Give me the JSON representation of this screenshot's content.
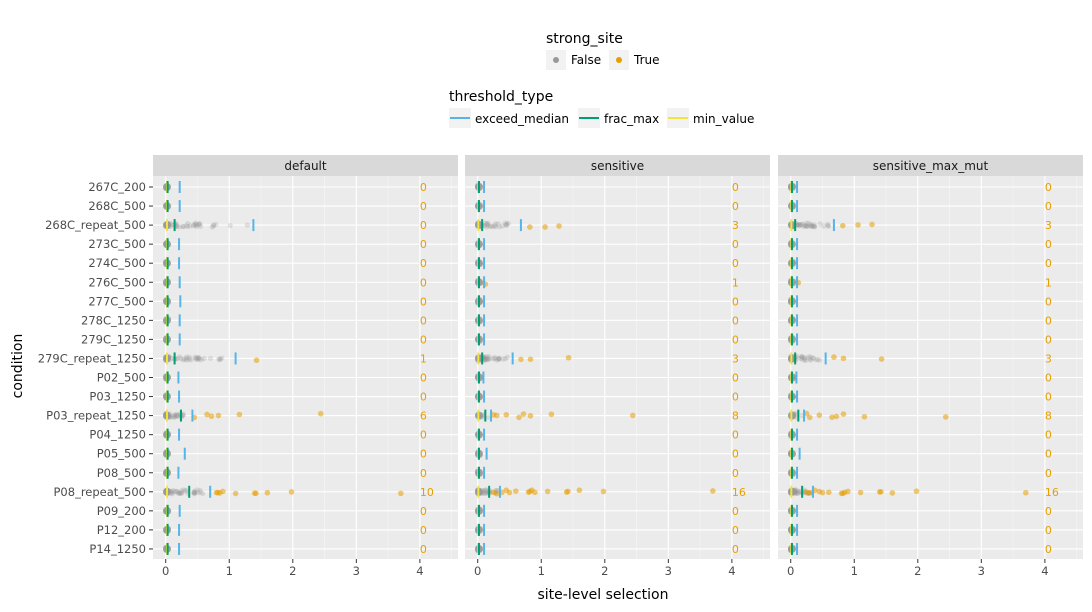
{
  "chart_data": {
    "type": "scatter",
    "xlabel": "site-level selection",
    "ylabel": "condition",
    "xlim": [
      -0.2,
      4.6
    ],
    "xticks": [
      0,
      1,
      2,
      3,
      4
    ],
    "grid": true,
    "legend_placement": "top",
    "colors": {
      "strong_false": "#999999",
      "strong_true": "#E69F00",
      "exceed_median": "#56B4E9",
      "frac_max": "#009E73",
      "min_value": "#F0E442",
      "panel_bg": "#EBEBEB",
      "strip_bg": "#D9D9D9"
    },
    "legends": [
      {
        "title": "strong_site",
        "kind": "point",
        "items": [
          {
            "label": "False",
            "color": "#999999"
          },
          {
            "label": "True",
            "color": "#E69F00"
          }
        ]
      },
      {
        "title": "threshold_type",
        "kind": "line",
        "items": [
          {
            "label": "exceed_median",
            "color": "#56B4E9"
          },
          {
            "label": "frac_max",
            "color": "#009E73"
          },
          {
            "label": "min_value",
            "color": "#F0E442"
          }
        ]
      }
    ],
    "conditions": [
      "267C_200",
      "268C_500",
      "268C_repeat_500",
      "273C_500",
      "274C_500",
      "276C_500",
      "277C_500",
      "278C_1250",
      "279C_1250",
      "279C_repeat_1250",
      "P02_500",
      "P03_1250",
      "P03_repeat_1250",
      "P04_1250",
      "P05_500",
      "P08_500",
      "P08_repeat_500",
      "P09_200",
      "P12_200",
      "P14_1250"
    ],
    "facets": [
      {
        "name": "default",
        "counts": [
          0,
          0,
          0,
          0,
          0,
          0,
          0,
          0,
          0,
          1,
          0,
          0,
          6,
          0,
          0,
          0,
          10,
          0,
          0,
          0
        ],
        "exceed_median": [
          0.22,
          0.22,
          1.38,
          0.21,
          0.21,
          0.22,
          0.23,
          0.22,
          0.22,
          1.1,
          0.2,
          0.21,
          0.42,
          0.21,
          0.3,
          0.2,
          0.7,
          0.22,
          0.21,
          0.21
        ],
        "frac_max": [
          0.03,
          0.03,
          0.14,
          0.03,
          0.03,
          0.03,
          0.03,
          0.03,
          0.03,
          0.14,
          0.03,
          0.03,
          0.24,
          0.03,
          0.03,
          0.03,
          0.37,
          0.03,
          0.03,
          0.03
        ],
        "min_value": [
          0.02,
          0.02,
          0.02,
          0.02,
          0.02,
          0.02,
          0.02,
          0.02,
          0.02,
          0.02,
          0.02,
          0.02,
          0.02,
          0.02,
          0.02,
          0.02,
          0.02,
          0.02,
          0.02,
          0.02
        ],
        "strong_points": [
          {
            "row": 9,
            "x": 1.43
          },
          {
            "row": 12,
            "x": 0.65
          },
          {
            "row": 12,
            "x": 0.72
          },
          {
            "row": 12,
            "x": 0.83
          },
          {
            "row": 12,
            "x": 1.16
          },
          {
            "row": 12,
            "x": 2.44
          },
          {
            "row": 12,
            "x": 0.45
          },
          {
            "row": 16,
            "x": 0.8
          },
          {
            "row": 16,
            "x": 0.85
          },
          {
            "row": 16,
            "x": 0.9
          },
          {
            "row": 16,
            "x": 1.1
          },
          {
            "row": 16,
            "x": 1.4
          },
          {
            "row": 16,
            "x": 1.42
          },
          {
            "row": 16,
            "x": 1.6
          },
          {
            "row": 16,
            "x": 1.98
          },
          {
            "row": 16,
            "x": 3.7
          },
          {
            "row": 16,
            "x": 0.82
          }
        ],
        "weak_spread": [
          0.05,
          0.05,
          1.3,
          0.05,
          0.05,
          0.05,
          0.05,
          0.05,
          0.05,
          0.9,
          0.05,
          0.05,
          0.3,
          0.05,
          0.05,
          0.05,
          0.6,
          0.05,
          0.05,
          0.05
        ]
      },
      {
        "name": "sensitive",
        "counts": [
          0,
          0,
          3,
          0,
          0,
          1,
          0,
          0,
          0,
          3,
          0,
          0,
          8,
          0,
          0,
          0,
          16,
          0,
          0,
          0
        ],
        "exceed_median": [
          0.1,
          0.1,
          0.68,
          0.1,
          0.1,
          0.1,
          0.1,
          0.1,
          0.1,
          0.55,
          0.09,
          0.1,
          0.21,
          0.1,
          0.14,
          0.1,
          0.35,
          0.1,
          0.1,
          0.1
        ],
        "frac_max": [
          0.02,
          0.02,
          0.07,
          0.02,
          0.02,
          0.02,
          0.02,
          0.02,
          0.02,
          0.07,
          0.02,
          0.02,
          0.12,
          0.02,
          0.02,
          0.02,
          0.18,
          0.02,
          0.02,
          0.02
        ],
        "min_value": [
          0.01,
          0.01,
          0.01,
          0.01,
          0.01,
          0.01,
          0.01,
          0.01,
          0.01,
          0.01,
          0.01,
          0.01,
          0.01,
          0.01,
          0.01,
          0.01,
          0.01,
          0.01,
          0.01,
          0.01
        ],
        "strong_points": [
          {
            "row": 2,
            "x": 0.82
          },
          {
            "row": 2,
            "x": 1.06
          },
          {
            "row": 2,
            "x": 1.28
          },
          {
            "row": 5,
            "x": 0.12
          },
          {
            "row": 9,
            "x": 0.68
          },
          {
            "row": 9,
            "x": 0.83
          },
          {
            "row": 9,
            "x": 1.43
          },
          {
            "row": 12,
            "x": 0.45
          },
          {
            "row": 12,
            "x": 0.65
          },
          {
            "row": 12,
            "x": 0.72
          },
          {
            "row": 12,
            "x": 0.83
          },
          {
            "row": 12,
            "x": 1.16
          },
          {
            "row": 12,
            "x": 2.44
          },
          {
            "row": 12,
            "x": 0.3
          },
          {
            "row": 12,
            "x": 0.25
          },
          {
            "row": 16,
            "x": 0.38
          },
          {
            "row": 16,
            "x": 0.45
          },
          {
            "row": 16,
            "x": 0.5
          },
          {
            "row": 16,
            "x": 0.6
          },
          {
            "row": 16,
            "x": 0.8
          },
          {
            "row": 16,
            "x": 0.82
          },
          {
            "row": 16,
            "x": 0.85
          },
          {
            "row": 16,
            "x": 0.9
          },
          {
            "row": 16,
            "x": 1.1
          },
          {
            "row": 16,
            "x": 1.4
          },
          {
            "row": 16,
            "x": 1.42
          },
          {
            "row": 16,
            "x": 1.6
          },
          {
            "row": 16,
            "x": 1.98
          },
          {
            "row": 16,
            "x": 3.7
          },
          {
            "row": 16,
            "x": 0.25
          },
          {
            "row": 16,
            "x": 0.3
          }
        ],
        "weak_spread": [
          0.05,
          0.05,
          0.6,
          0.05,
          0.05,
          0.08,
          0.05,
          0.05,
          0.05,
          0.5,
          0.05,
          0.05,
          0.2,
          0.05,
          0.05,
          0.05,
          0.35,
          0.05,
          0.05,
          0.05
        ]
      },
      {
        "name": "sensitive_max_mut",
        "counts": [
          0,
          0,
          3,
          0,
          0,
          1,
          0,
          0,
          0,
          3,
          0,
          0,
          8,
          0,
          0,
          0,
          16,
          0,
          0,
          0
        ],
        "exceed_median": [
          0.1,
          0.1,
          0.68,
          0.1,
          0.1,
          0.1,
          0.1,
          0.1,
          0.1,
          0.55,
          0.09,
          0.1,
          0.21,
          0.1,
          0.14,
          0.1,
          0.35,
          0.1,
          0.1,
          0.1
        ],
        "frac_max": [
          0.02,
          0.02,
          0.07,
          0.02,
          0.02,
          0.02,
          0.02,
          0.02,
          0.02,
          0.07,
          0.02,
          0.02,
          0.12,
          0.02,
          0.02,
          0.02,
          0.18,
          0.02,
          0.02,
          0.02
        ],
        "min_value": [
          0.01,
          0.01,
          0.01,
          0.01,
          0.01,
          0.01,
          0.01,
          0.01,
          0.01,
          0.01,
          0.01,
          0.01,
          0.01,
          0.01,
          0.01,
          0.01,
          0.01,
          0.01,
          0.01,
          0.01
        ],
        "strong_points": [
          {
            "row": 2,
            "x": 0.82
          },
          {
            "row": 2,
            "x": 1.06
          },
          {
            "row": 2,
            "x": 1.28
          },
          {
            "row": 5,
            "x": 0.12
          },
          {
            "row": 9,
            "x": 0.68
          },
          {
            "row": 9,
            "x": 0.83
          },
          {
            "row": 9,
            "x": 1.43
          },
          {
            "row": 12,
            "x": 0.45
          },
          {
            "row": 12,
            "x": 0.65
          },
          {
            "row": 12,
            "x": 0.72
          },
          {
            "row": 12,
            "x": 0.83
          },
          {
            "row": 12,
            "x": 1.16
          },
          {
            "row": 12,
            "x": 2.44
          },
          {
            "row": 12,
            "x": 0.3
          },
          {
            "row": 12,
            "x": 0.25
          },
          {
            "row": 16,
            "x": 0.38
          },
          {
            "row": 16,
            "x": 0.45
          },
          {
            "row": 16,
            "x": 0.5
          },
          {
            "row": 16,
            "x": 0.6
          },
          {
            "row": 16,
            "x": 0.8
          },
          {
            "row": 16,
            "x": 0.82
          },
          {
            "row": 16,
            "x": 0.85
          },
          {
            "row": 16,
            "x": 0.9
          },
          {
            "row": 16,
            "x": 1.1
          },
          {
            "row": 16,
            "x": 1.4
          },
          {
            "row": 16,
            "x": 1.42
          },
          {
            "row": 16,
            "x": 1.6
          },
          {
            "row": 16,
            "x": 1.98
          },
          {
            "row": 16,
            "x": 3.7
          },
          {
            "row": 16,
            "x": 0.25
          },
          {
            "row": 16,
            "x": 0.3
          }
        ],
        "weak_spread": [
          0.05,
          0.05,
          0.6,
          0.05,
          0.05,
          0.08,
          0.05,
          0.05,
          0.05,
          0.5,
          0.05,
          0.05,
          0.2,
          0.05,
          0.05,
          0.05,
          0.35,
          0.05,
          0.05,
          0.05
        ]
      }
    ]
  }
}
